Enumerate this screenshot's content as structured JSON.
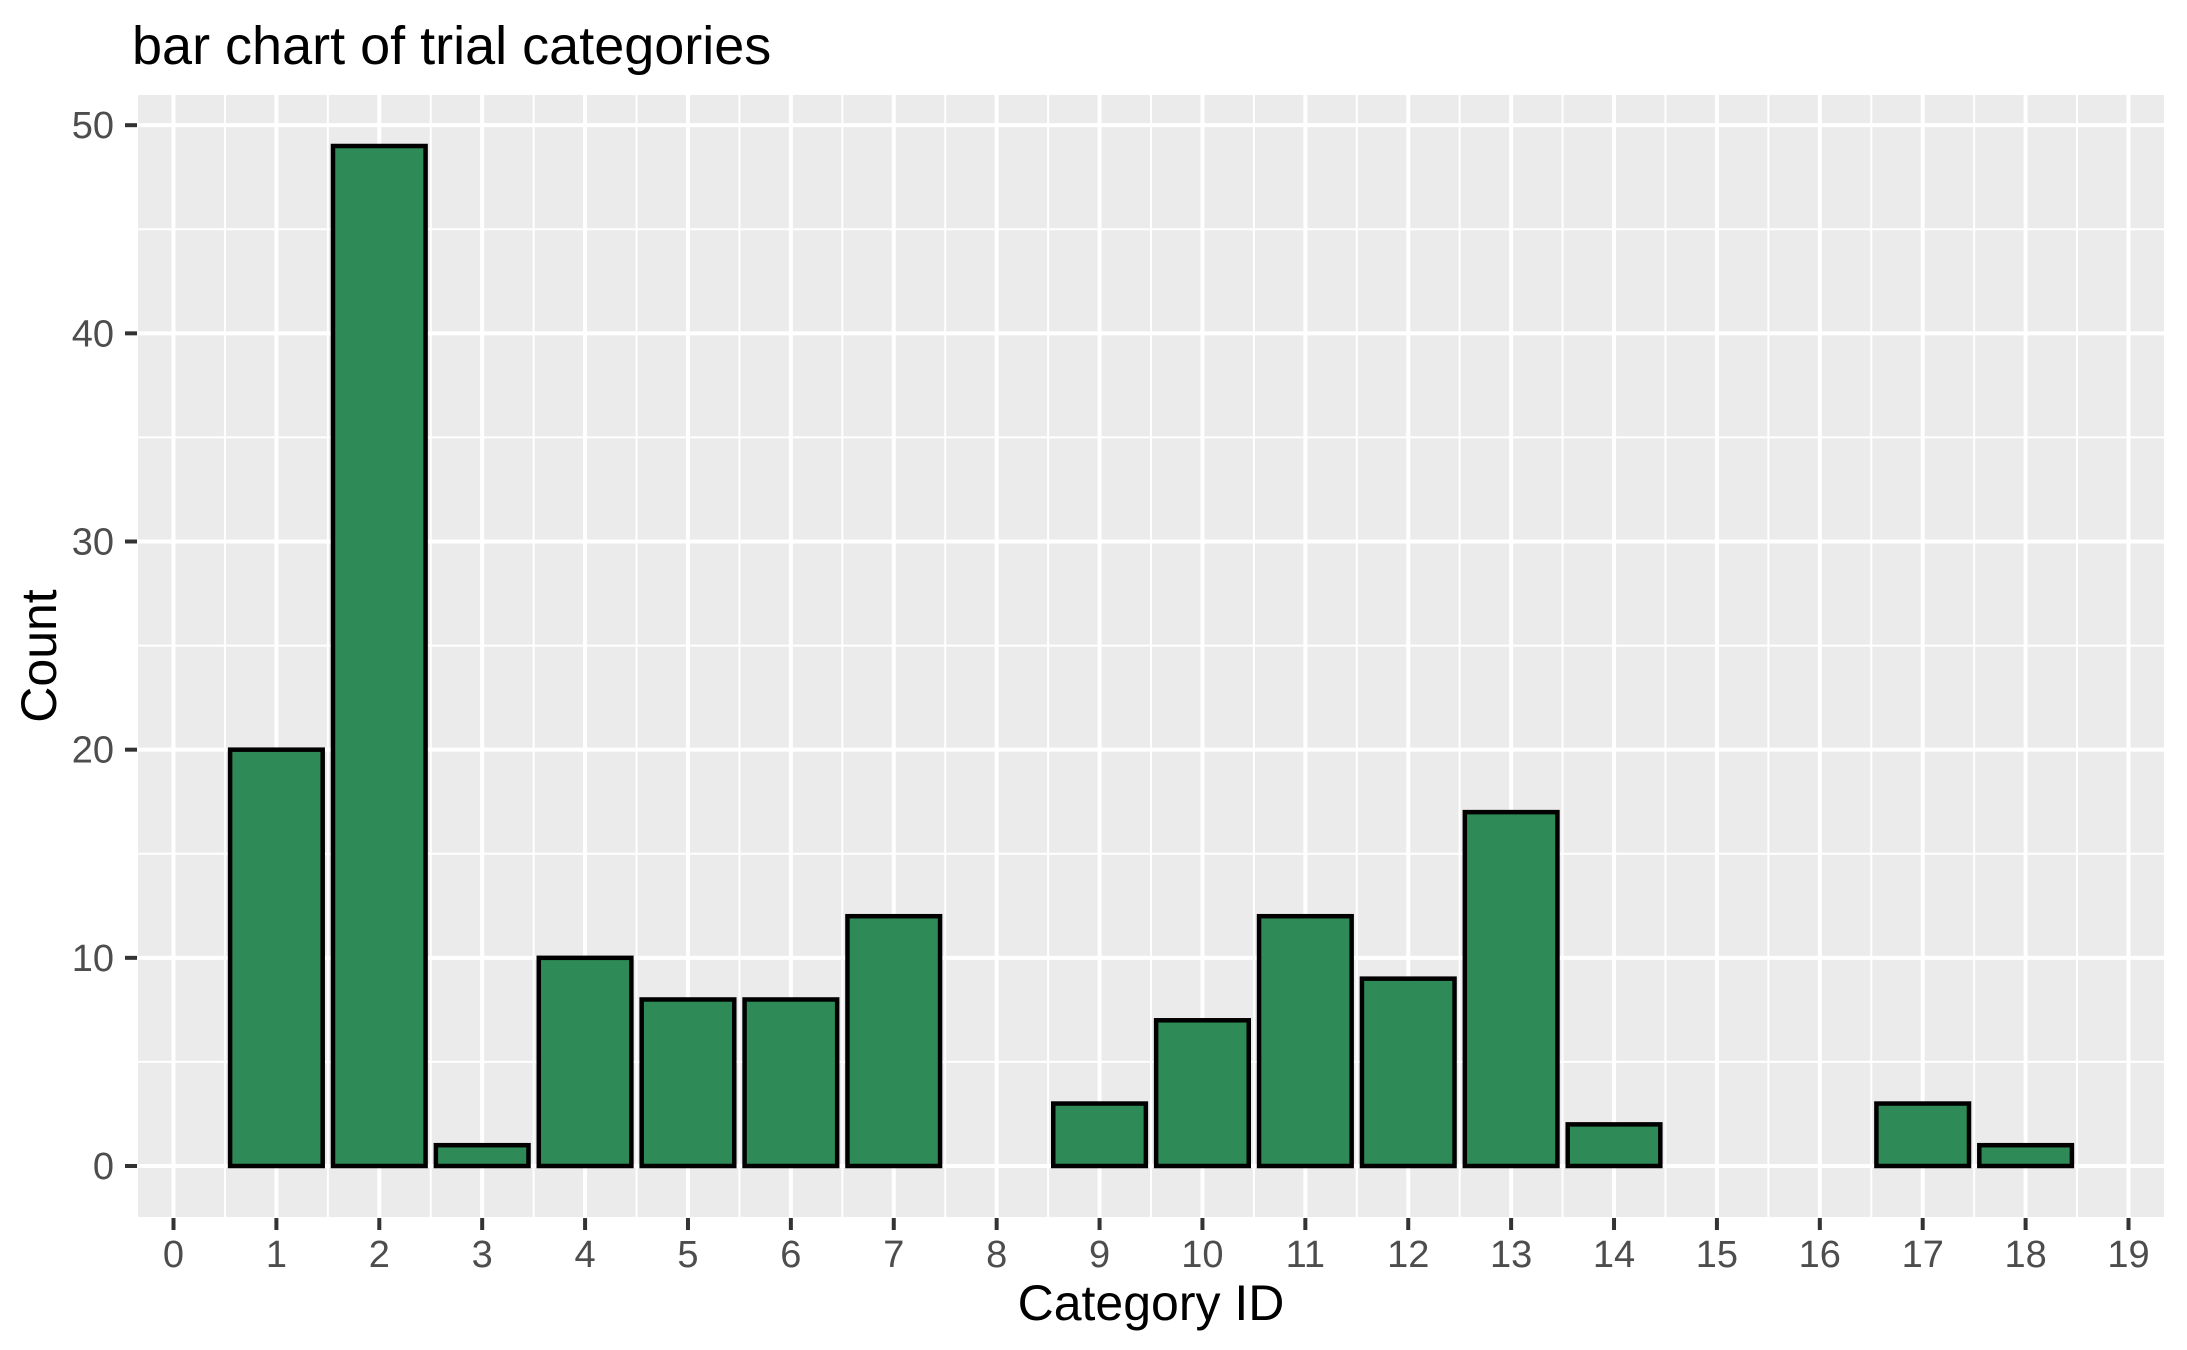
{
  "chart_data": {
    "type": "bar",
    "title": "bar chart of trial categories",
    "xlabel": "Category ID",
    "ylabel": "Count",
    "categories": [
      0,
      1,
      2,
      3,
      4,
      5,
      6,
      7,
      8,
      9,
      10,
      11,
      12,
      13,
      14,
      15,
      16,
      17,
      18,
      19
    ],
    "values": [
      0,
      20,
      49,
      1,
      10,
      8,
      8,
      12,
      0,
      3,
      7,
      12,
      9,
      17,
      2,
      0,
      0,
      3,
      1,
      0
    ],
    "x_tick_labels": [
      "0",
      "1",
      "2",
      "3",
      "4",
      "5",
      "6",
      "7",
      "8",
      "9",
      "10",
      "11",
      "12",
      "13",
      "14",
      "15",
      "16",
      "17",
      "18",
      "19"
    ],
    "y_ticks": [
      0,
      10,
      20,
      30,
      40,
      50
    ],
    "y_minor_ticks": [
      5,
      15,
      25,
      35,
      45
    ],
    "xlim": [
      -0.345,
      19.345
    ],
    "ylim": [
      -2.45,
      51.45
    ],
    "bar_width": 0.9,
    "grid": "major-and-minor-on",
    "legend": "none",
    "colors": {
      "bar_fill": "#2e8b57",
      "bar_stroke": "#000000",
      "panel_bg": "#ebebeb",
      "gridline": "#ffffff",
      "tick_label": "#4d4d4d",
      "axis_tick": "#333333",
      "title_text": "#000000",
      "axis_title_text": "#000000",
      "page_bg": "#ffffff"
    }
  }
}
